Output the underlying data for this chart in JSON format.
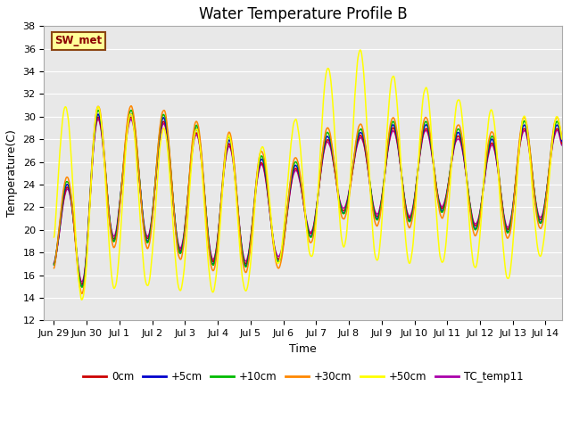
{
  "title": "Water Temperature Profile B",
  "xlabel": "Time",
  "ylabel": "Temperature(C)",
  "ylim": [
    12,
    38
  ],
  "yticks": [
    12,
    14,
    16,
    18,
    20,
    22,
    24,
    26,
    28,
    30,
    32,
    34,
    36,
    38
  ],
  "xtick_labels": [
    "Jun 29",
    "Jun 30",
    "Jul 1",
    "Jul 2",
    "Jul 3",
    "Jul 4",
    "Jul 5",
    "Jul 6",
    "Jul 7",
    "Jul 8",
    "Jul 9",
    "Jul 10",
    "Jul 11",
    "Jul 12",
    "Jul 13",
    "Jul 14"
  ],
  "xtick_positions": [
    0,
    1,
    2,
    3,
    4,
    5,
    6,
    7,
    8,
    9,
    10,
    11,
    12,
    13,
    14,
    15
  ],
  "series_colors": {
    "0cm": "#cc0000",
    "+5cm": "#0000cc",
    "+10cm": "#00bb00",
    "+30cm": "#ff8800",
    "+50cm": "#ffff00",
    "TC_temp11": "#aa00aa"
  },
  "annotation_text": "SW_met",
  "bg_color": "#e8e8e8",
  "title_fontsize": 12,
  "axis_label_fontsize": 9,
  "tick_fontsize": 8
}
